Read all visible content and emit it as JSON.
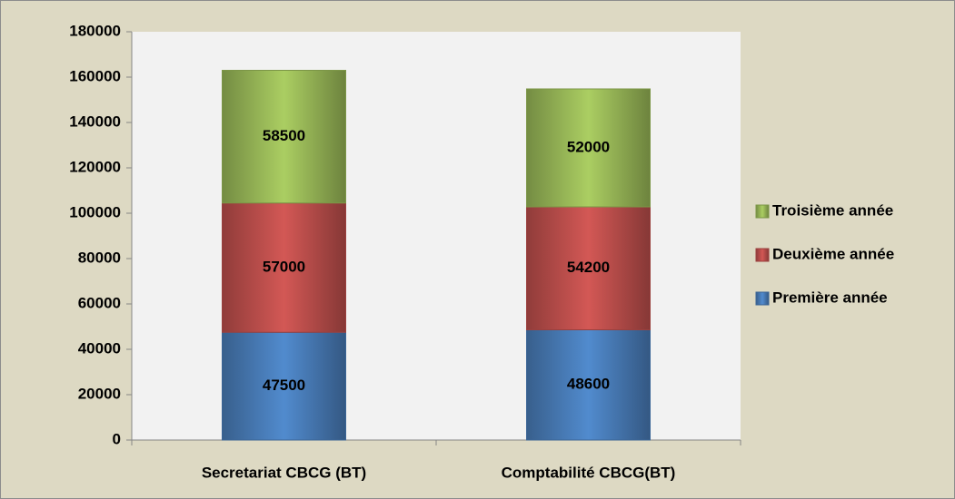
{
  "chart_data": {
    "type": "stacked_bar",
    "categories": [
      "Secretariat CBCG (BT)",
      "Comptabilité CBCG(BT)"
    ],
    "series": [
      {
        "name": "Première année",
        "color": "#4a7ebb",
        "values": [
          47500,
          48600
        ]
      },
      {
        "name": "Deuxième année",
        "color": "#c0504d",
        "values": [
          57000,
          54200
        ]
      },
      {
        "name": "Troisième année",
        "color": "#9bbb59",
        "values": [
          58500,
          52000
        ]
      }
    ],
    "ylim": [
      0,
      180000
    ],
    "yticks": [
      0,
      20000,
      40000,
      60000,
      80000,
      100000,
      120000,
      140000,
      160000,
      180000
    ],
    "grid": false,
    "legend": "right"
  }
}
